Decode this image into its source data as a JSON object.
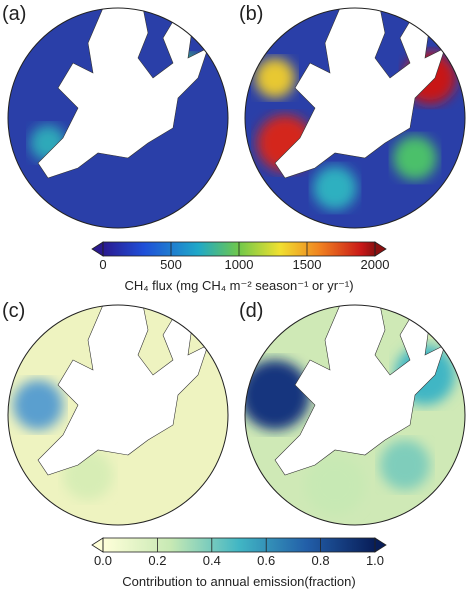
{
  "panels": [
    {
      "label": "(a)"
    },
    {
      "label": "(b)"
    },
    {
      "label": "(c)"
    },
    {
      "label": "(d)"
    }
  ],
  "colorbars": [
    {
      "label": "CH₄ flux (mg CH₄ m⁻² season⁻¹ or yr⁻¹)",
      "lim": [
        0,
        2000
      ],
      "ticks": [
        0,
        500,
        1000,
        1500,
        2000
      ]
    },
    {
      "label": "Contribution to annual emission(fraction)",
      "lim": [
        0,
        1
      ],
      "ticks": [
        {
          "value": 0,
          "label": "0.0"
        },
        0.2,
        0.4,
        0.6,
        0.8,
        {
          "value": 1,
          "label": "1.0"
        }
      ]
    }
  ]
}
